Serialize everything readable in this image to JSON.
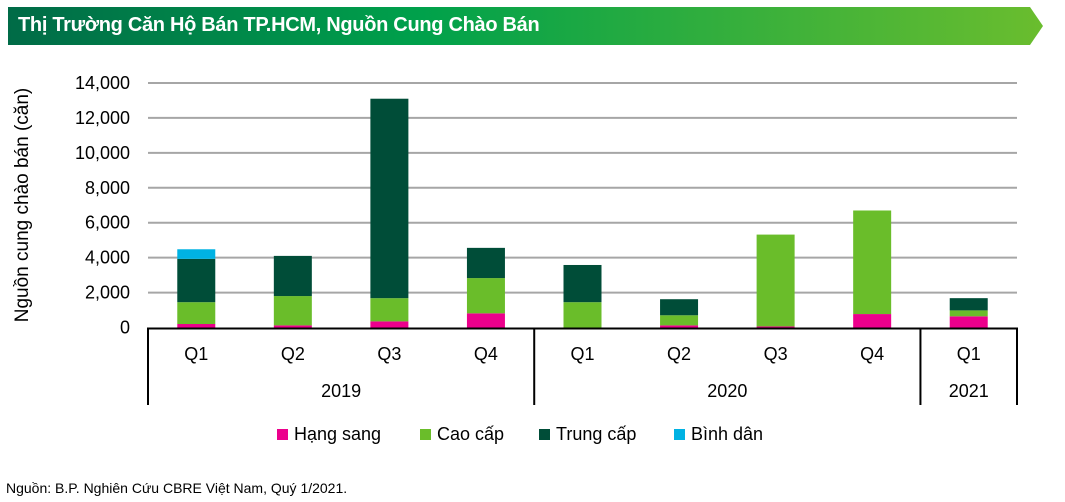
{
  "header": {
    "title": "Thị Trường Căn Hộ Bán TP.HCM, Nguồn Cung Chào Bán"
  },
  "source": "Nguồn: B.P. Nghiên Cứu CBRE Việt Nam, Quý 1/2021.",
  "chart_data": {
    "type": "bar",
    "stacked": true,
    "ylabel": "Nguồn cung chào bán (căn)",
    "ylim": [
      0,
      14000
    ],
    "yticks": [
      "0",
      "2,000",
      "4,000",
      "6,000",
      "8,000",
      "10,000",
      "12,000",
      "14,000"
    ],
    "grid": true,
    "legend_position": "bottom",
    "categories": [
      "Q1",
      "Q2",
      "Q3",
      "Q4",
      "Q1",
      "Q2",
      "Q3",
      "Q4",
      "Q1"
    ],
    "groups": [
      {
        "label": "2019",
        "count": 4
      },
      {
        "label": "2020",
        "count": 4
      },
      {
        "label": "2021",
        "count": 1
      }
    ],
    "series": [
      {
        "name": "Hạng sang",
        "color": "#ec008c",
        "values": [
          200,
          120,
          350,
          810,
          0,
          120,
          60,
          770,
          640
        ]
      },
      {
        "name": "Cao cấp",
        "color": "#6abd2a",
        "values": [
          1250,
          1680,
          1330,
          2020,
          1450,
          580,
          5260,
          5930,
          340
        ]
      },
      {
        "name": "Trung cấp",
        "color": "#004d38",
        "values": [
          2480,
          2300,
          11420,
          1730,
          2130,
          920,
          0,
          0,
          700
        ]
      },
      {
        "name": "Bình dân",
        "color": "#00b2e3",
        "values": [
          550,
          0,
          0,
          0,
          0,
          0,
          0,
          0,
          0
        ]
      }
    ]
  }
}
